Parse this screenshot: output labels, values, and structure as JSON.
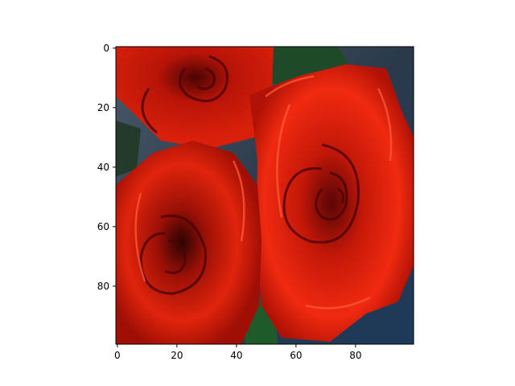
{
  "image": {
    "subject": "red roses",
    "pixel_grid": "100x100",
    "palette": {
      "deep_red": "#7a0a06",
      "red": "#c41808",
      "bright_red": "#f02a10",
      "highlight": "#ff4a2a",
      "shadow": "#3a0505",
      "leaf_green": "#1e5a2a",
      "background_blue": "#1c3a5a",
      "background_gray": "#4a5a6a"
    }
  },
  "axes": {
    "x_ticks": [
      {
        "value": 0,
        "label": "0"
      },
      {
        "value": 20,
        "label": "20"
      },
      {
        "value": 40,
        "label": "40"
      },
      {
        "value": 60,
        "label": "60"
      },
      {
        "value": 80,
        "label": "80"
      }
    ],
    "y_ticks": [
      {
        "value": 0,
        "label": "0"
      },
      {
        "value": 20,
        "label": "20"
      },
      {
        "value": 40,
        "label": "40"
      },
      {
        "value": 60,
        "label": "60"
      },
      {
        "value": 80,
        "label": "80"
      }
    ],
    "x_range": [
      -0.5,
      99.5
    ],
    "y_range": [
      -0.5,
      99.5
    ]
  }
}
